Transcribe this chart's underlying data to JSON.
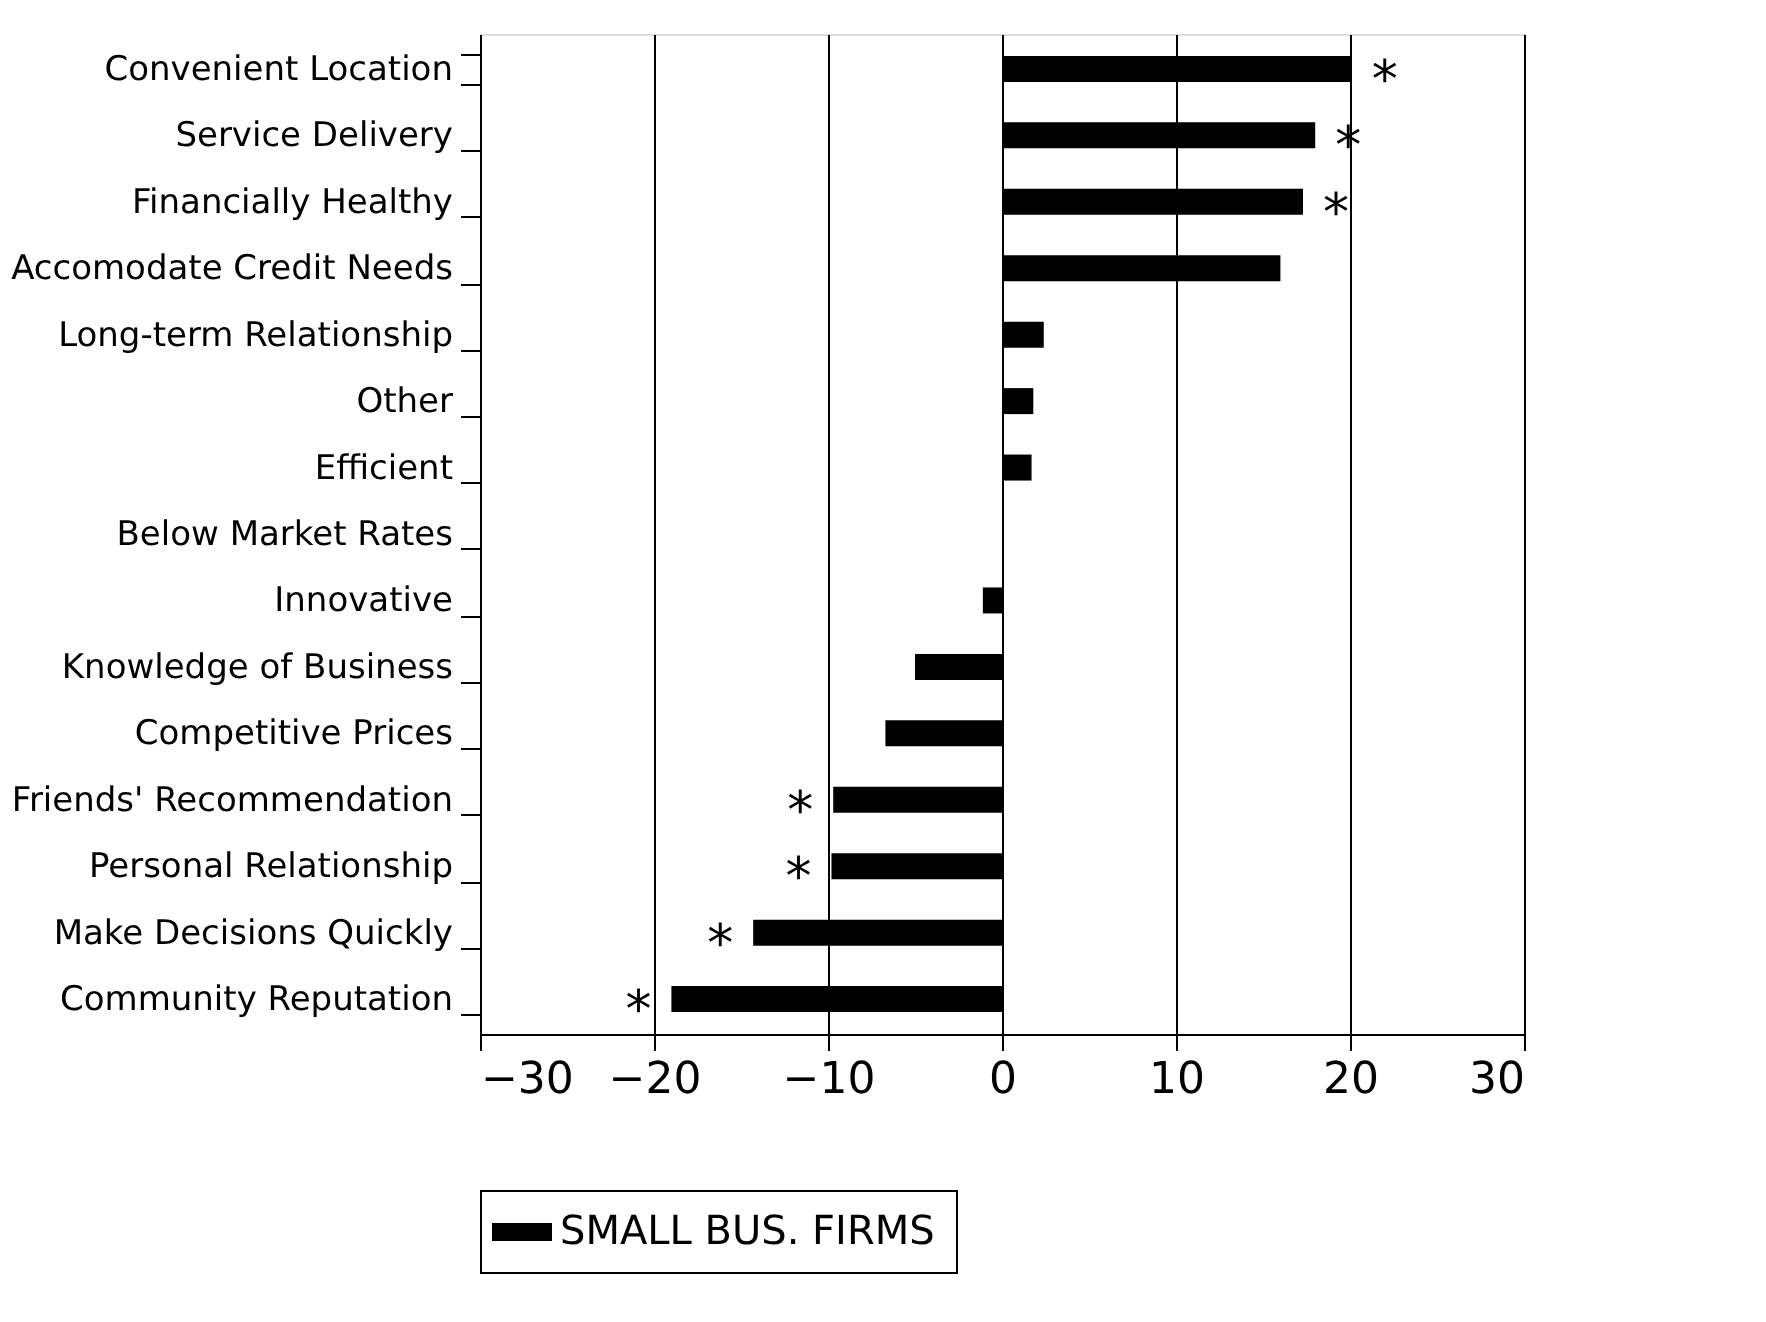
{
  "chart_data": {
    "type": "bar",
    "orientation": "horizontal",
    "categories": [
      "Convenient Location",
      "Service Delivery",
      "Financially Healthy",
      "Accomodate Credit Needs",
      "Long-term Relationship",
      "Other",
      "Efficient",
      "Below Market Rates",
      "Innovative",
      "Knowledge of Business",
      "Competitive Prices",
      "Friends' Recommendation",
      "Personal Relationship",
      "Make Decisions Quickly",
      "Community Reputation"
    ],
    "series": [
      {
        "name": "SMALL BUS. FIRMS",
        "color": "#000000",
        "values": [
          20.1,
          18.0,
          17.3,
          16.0,
          2.4,
          1.8,
          1.7,
          0,
          -1.1,
          -5.0,
          -6.7,
          -9.7,
          -9.8,
          -14.3,
          -19.0
        ]
      }
    ],
    "xlim": [
      -30,
      30
    ],
    "xticks": [
      -30,
      -20,
      -10,
      0,
      10,
      20,
      30
    ],
    "grid": "x",
    "legend": "bottom",
    "annotations": [
      {
        "text": "*",
        "x": 20.1,
        "y": "Convenient Location"
      },
      {
        "text": "*",
        "x": 18.0,
        "y": "Service Delivery"
      },
      {
        "text": "*",
        "x": 17.3,
        "y": "Financially Healthy"
      },
      {
        "text": "*",
        "x": -9.7,
        "y": "Friends' Recommendation"
      },
      {
        "text": "*",
        "x": -9.8,
        "y": "Personal Relationship"
      },
      {
        "text": "*",
        "x": -14.3,
        "y": "Make Decisions Quickly"
      },
      {
        "text": "*",
        "x": -19.0,
        "y": "Community Reputation"
      }
    ]
  }
}
